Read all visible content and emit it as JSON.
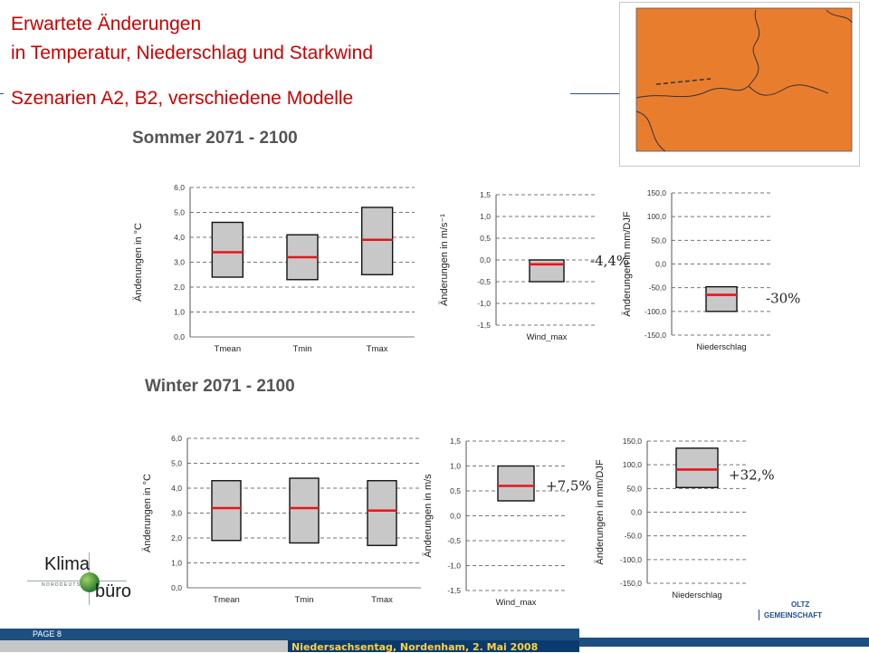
{
  "slide": {
    "title_line1": "Erwartete Änderungen",
    "title_line2": "in Temperatur, Niederschlag und Starkwind",
    "title_line3": "Szenarien A2, B2, verschiedene Modelle",
    "page_label": "PAGE 8",
    "event_label": "Niedersachsentag, Nordenham, 2. Mai 2008",
    "logo_klima": "Klima",
    "logo_norddeutsches": "NORDDEUTSCHES",
    "logo_buero": "büro",
    "partner_line1": "OLTZ",
    "partner_line2": "GEMEINSCHAFT",
    "summer_title": "Sommer 2071 - 2100",
    "winter_title": "Winter 2071 - 2100"
  },
  "colors": {
    "title": "#cc0000",
    "box_fill": "#c8c8c8",
    "median": "#e8141b",
    "map_fill": "#e87d2e",
    "footer_dark": "#0b3b6e",
    "footer_blue": "#1d4f80",
    "footer_text": "#ffd23f"
  },
  "chart_data": [
    {
      "type": "boxplot",
      "season": "summer",
      "ylabel": "Änderungen in °C",
      "ylim": [
        0,
        6
      ],
      "ticks": [
        0,
        1,
        2,
        3,
        4,
        5,
        6
      ],
      "tick_labels": [
        "0,0",
        "1,0",
        "2,0",
        "3,0",
        "4,0",
        "5,0",
        "6,0"
      ],
      "categories": [
        "Tmean",
        "Tmin",
        "Tmax"
      ],
      "boxes": [
        {
          "low": 2.4,
          "median": 3.4,
          "high": 4.6
        },
        {
          "low": 2.3,
          "median": 3.2,
          "high": 4.1
        },
        {
          "low": 2.5,
          "median": 3.9,
          "high": 5.2
        }
      ],
      "annotation": "",
      "grid": true
    },
    {
      "type": "boxplot",
      "season": "summer",
      "ylabel": "Änderungen in m/s⁻¹",
      "ylim": [
        -1.5,
        1.5
      ],
      "ticks": [
        -1.5,
        -1,
        -0.5,
        0,
        0.5,
        1,
        1.5
      ],
      "tick_labels": [
        "-1,5",
        "-1,0",
        "-0,5",
        "0,0",
        "0,5",
        "1,0",
        "1,5"
      ],
      "categories": [
        "Wind_max"
      ],
      "boxes": [
        {
          "low": -0.5,
          "median": -0.1,
          "high": 0.0
        }
      ],
      "annotation": "-4,4%",
      "grid": true
    },
    {
      "type": "boxplot",
      "season": "summer",
      "ylabel": "Änderungen in mm/DJF",
      "ylim": [
        -150,
        150
      ],
      "ticks": [
        -150,
        -100,
        -50,
        0,
        50,
        100,
        150
      ],
      "tick_labels": [
        "-150,0",
        "-100,0",
        "-50,0",
        "0,0",
        "50,0",
        "100,0",
        "150,0"
      ],
      "categories": [
        "Niederschlag"
      ],
      "boxes": [
        {
          "low": -100,
          "median": -65,
          "high": -48
        }
      ],
      "annotation": "-30%",
      "grid": true
    },
    {
      "type": "boxplot",
      "season": "winter",
      "ylabel": "Änderungen in °C",
      "ylim": [
        0,
        6
      ],
      "ticks": [
        0,
        1,
        2,
        3,
        4,
        5,
        6
      ],
      "tick_labels": [
        "0,0",
        "1,0",
        "2,0",
        "3,0",
        "4,0",
        "5,0",
        "6,0"
      ],
      "categories": [
        "Tmean",
        "Tmin",
        "Tmax"
      ],
      "boxes": [
        {
          "low": 1.9,
          "median": 3.2,
          "high": 4.3
        },
        {
          "low": 1.8,
          "median": 3.2,
          "high": 4.4
        },
        {
          "low": 1.7,
          "median": 3.1,
          "high": 4.3
        }
      ],
      "annotation": "",
      "grid": true
    },
    {
      "type": "boxplot",
      "season": "winter",
      "ylabel": "Änderungen in m/s",
      "ylim": [
        -1.5,
        1.5
      ],
      "ticks": [
        -1.5,
        -1,
        -0.5,
        0,
        0.5,
        1,
        1.5
      ],
      "tick_labels": [
        "-1,5",
        "-1,0",
        "-0,5",
        "0,0",
        "0,5",
        "1,0",
        "1,5"
      ],
      "categories": [
        "Wind_max"
      ],
      "boxes": [
        {
          "low": 0.3,
          "median": 0.6,
          "high": 1.0
        }
      ],
      "annotation": "+7,5%",
      "grid": true
    },
    {
      "type": "boxplot",
      "season": "winter",
      "ylabel": "Änderungen in mm/DJF",
      "ylim": [
        -150,
        150
      ],
      "ticks": [
        -150,
        -100,
        -50,
        0,
        50,
        100,
        150
      ],
      "tick_labels": [
        "-150,0",
        "-100,0",
        "-50,0",
        "0,0",
        "50,0",
        "100,0",
        "150,0"
      ],
      "categories": [
        "Niederschlag"
      ],
      "boxes": [
        {
          "low": 52,
          "median": 90,
          "high": 135
        }
      ],
      "annotation": "+32,%",
      "grid": true
    }
  ]
}
